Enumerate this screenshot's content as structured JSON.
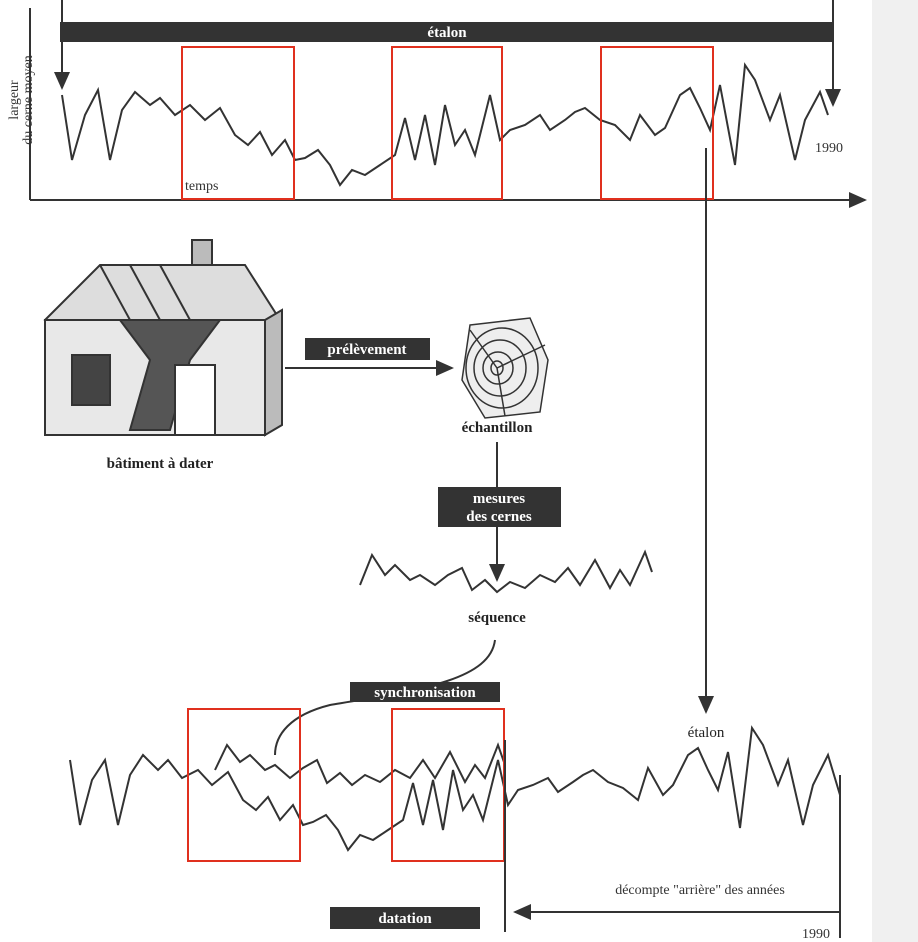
{
  "top": {
    "banner": "étalon",
    "y_axis_label": [
      "largeur",
      "du cerne moyen"
    ],
    "x_axis_label": "temps",
    "end_year": "1990"
  },
  "building": "bâtiment à dater",
  "sampling": "prélèvement",
  "sample": "échantillon",
  "measurement": [
    "mesures",
    "des cernes"
  ],
  "sequence": "séquence",
  "synchronization": "synchronisation",
  "reference": "étalon",
  "countdown": "décompte \"arrière\" des années",
  "dating": "datation",
  "bottom_year": "1990"
}
